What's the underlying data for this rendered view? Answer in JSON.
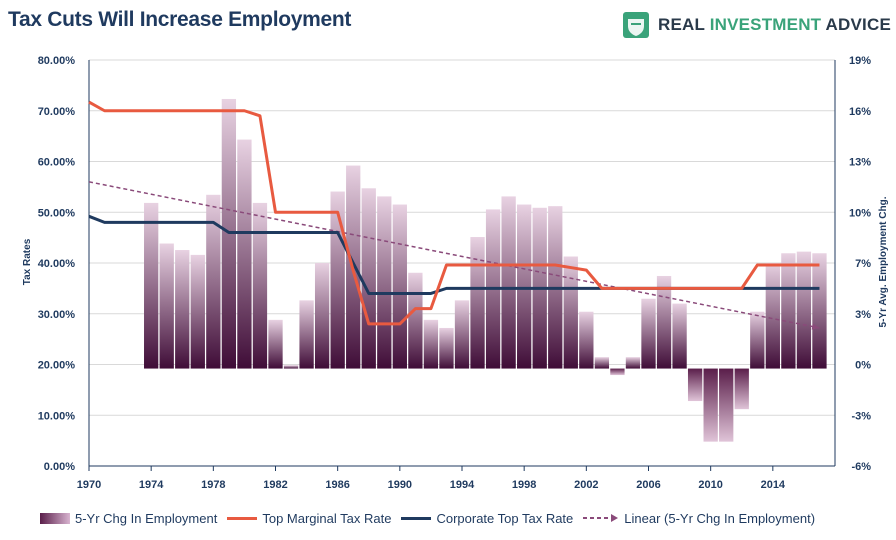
{
  "header": {
    "title": "Tax Cuts Will Increase Employment",
    "brand": {
      "word1": "REAL ",
      "word2": "INVESTMENT",
      "word3": " ADVICE"
    }
  },
  "colors": {
    "bars_dark": "#4a1040",
    "bars_light": "#e6cfe0",
    "marginal": "#e85a40",
    "corporate": "#1f3a5f",
    "linear": "#8a4a7a",
    "text": "#1f3a5f",
    "brand_green": "#3aa37a"
  },
  "chart_data": {
    "type": "bar",
    "title": "Tax Cuts Will Increase Employment",
    "ylabel_left": "Tax Rates",
    "ylabel_right": "5-Yr Avg. Employment Chg.",
    "y_left": {
      "range": [
        0,
        0.8
      ],
      "ticks": [
        "0.00%",
        "10.00%",
        "20.00%",
        "30.00%",
        "40.00%",
        "50.00%",
        "60.00%",
        "70.00%",
        "80.00%"
      ]
    },
    "y_right": {
      "range": [
        -6,
        19
      ],
      "ticks": [
        "-6%",
        "-3%",
        "0%",
        "3%",
        "7%",
        "10%",
        "13%",
        "16%",
        "19%"
      ]
    },
    "x_ticks": [
      "1970",
      "1974",
      "1978",
      "1982",
      "1986",
      "1990",
      "1994",
      "1998",
      "2002",
      "2006",
      "2010",
      "2014"
    ],
    "x_range": [
      1970,
      2018
    ],
    "series": [
      {
        "name": "5-Yr Chg In Employment",
        "kind": "bar",
        "x": [
          1974,
          1975,
          1976,
          1977,
          1978,
          1979,
          1980,
          1981,
          1982,
          1983,
          1984,
          1985,
          1986,
          1987,
          1988,
          1989,
          1990,
          1991,
          1992,
          1993,
          1994,
          1995,
          1996,
          1997,
          1998,
          1999,
          2000,
          2001,
          2002,
          2003,
          2004,
          2005,
          2006,
          2007,
          2008,
          2009,
          2010,
          2011,
          2012,
          2013,
          2014,
          2015,
          2016,
          2017
        ],
        "values": [
          10.2,
          7.7,
          7.3,
          7.0,
          10.7,
          16.6,
          14.1,
          10.2,
          3.0,
          0.2,
          4.2,
          6.5,
          10.9,
          12.5,
          11.1,
          10.6,
          10.1,
          5.9,
          3.0,
          2.5,
          4.2,
          8.1,
          9.8,
          10.6,
          10.1,
          9.9,
          10.0,
          6.9,
          3.5,
          0.7,
          -0.4,
          0.7,
          4.3,
          5.7,
          4.0,
          -2.0,
          -4.5,
          -4.5,
          -2.5,
          3.5,
          6.5,
          7.1,
          7.2,
          7.1
        ]
      },
      {
        "name": "Top Marginal Tax Rate",
        "kind": "line",
        "x": [
          1970,
          1971,
          1972,
          1973,
          1974,
          1975,
          1976,
          1977,
          1978,
          1979,
          1980,
          1981,
          1982,
          1983,
          1984,
          1985,
          1986,
          1987,
          1988,
          1989,
          1990,
          1991,
          1992,
          1993,
          1994,
          1995,
          1996,
          1997,
          1998,
          1999,
          2000,
          2001,
          2002,
          2003,
          2004,
          2005,
          2006,
          2007,
          2008,
          2009,
          2010,
          2011,
          2012,
          2013,
          2014,
          2015,
          2016,
          2017
        ],
        "values": [
          0.717,
          0.7,
          0.7,
          0.7,
          0.7,
          0.7,
          0.7,
          0.7,
          0.7,
          0.7,
          0.7,
          0.69,
          0.5,
          0.5,
          0.5,
          0.5,
          0.5,
          0.385,
          0.28,
          0.28,
          0.28,
          0.31,
          0.31,
          0.396,
          0.396,
          0.396,
          0.396,
          0.396,
          0.396,
          0.396,
          0.396,
          0.391,
          0.386,
          0.35,
          0.35,
          0.35,
          0.35,
          0.35,
          0.35,
          0.35,
          0.35,
          0.35,
          0.35,
          0.396,
          0.396,
          0.396,
          0.396,
          0.396
        ]
      },
      {
        "name": "Corporate Top Tax Rate",
        "kind": "line",
        "x": [
          1970,
          1971,
          1972,
          1973,
          1974,
          1975,
          1976,
          1977,
          1978,
          1979,
          1980,
          1981,
          1982,
          1983,
          1984,
          1985,
          1986,
          1987,
          1988,
          1989,
          1990,
          1991,
          1992,
          1993,
          1994,
          1995,
          1996,
          1997,
          1998,
          1999,
          2000,
          2001,
          2002,
          2003,
          2004,
          2005,
          2006,
          2007,
          2008,
          2009,
          2010,
          2011,
          2012,
          2013,
          2014,
          2015,
          2016,
          2017
        ],
        "values": [
          0.492,
          0.48,
          0.48,
          0.48,
          0.48,
          0.48,
          0.48,
          0.48,
          0.48,
          0.46,
          0.46,
          0.46,
          0.46,
          0.46,
          0.46,
          0.46,
          0.46,
          0.4,
          0.34,
          0.34,
          0.34,
          0.34,
          0.34,
          0.35,
          0.35,
          0.35,
          0.35,
          0.35,
          0.35,
          0.35,
          0.35,
          0.35,
          0.35,
          0.35,
          0.35,
          0.35,
          0.35,
          0.35,
          0.35,
          0.35,
          0.35,
          0.35,
          0.35,
          0.35,
          0.35,
          0.35,
          0.35,
          0.35
        ]
      },
      {
        "name": "Linear (5-Yr Chg In Employment)",
        "kind": "trend",
        "x": [
          1970,
          2017
        ],
        "values": [
          11.5,
          2.5
        ]
      }
    ],
    "grid": true,
    "legend_position": "bottom"
  }
}
